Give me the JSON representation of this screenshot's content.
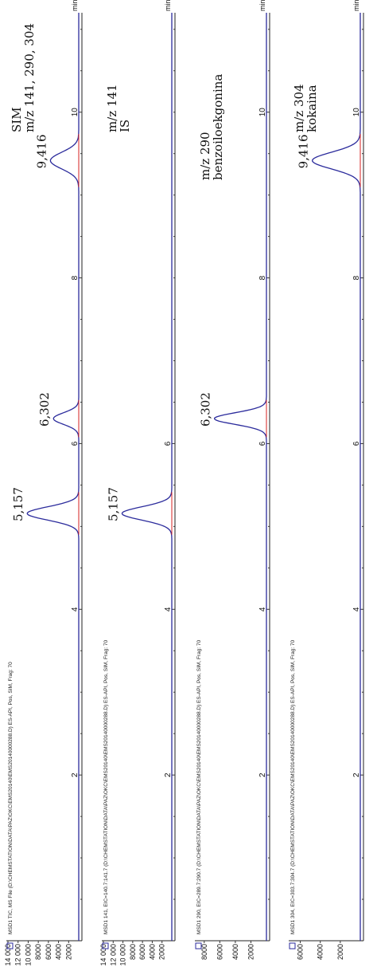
{
  "chart_data": [
    {
      "type": "line",
      "header": "MSD1 TIC, MS File (D:\\CHEMSTATION\\DATA\\PAZ\\OKC\\EMS20140\\EMS20140000288.D)   ES-API, Pos, SIM, Frag: 70",
      "annotation_lines": [
        "SIM",
        "m/z 141, 290, 304"
      ],
      "x_unit": "min",
      "xlim": [
        0,
        11.2
      ],
      "x_ticks": [
        2,
        4,
        6,
        8,
        10
      ],
      "ylim": [
        0,
        14000
      ],
      "y_ticks": [
        2000,
        4000,
        6000,
        8000,
        10000,
        12000,
        14000
      ],
      "y_tick_labels": [
        "2000",
        "4000",
        "6000",
        "8000",
        "10 000",
        "12 000",
        "14 000"
      ],
      "peaks": [
        {
          "rt": 5.157,
          "label": "5,157",
          "height": 10200,
          "sigma": 0.08
        },
        {
          "rt": 6.302,
          "label": "6,302",
          "height": 5000,
          "sigma": 0.07
        },
        {
          "rt": 9.416,
          "label": "9,416",
          "height": 5600,
          "sigma": 0.1
        }
      ]
    },
    {
      "type": "line",
      "header": "MSD1 141, EIC=140.7:141.7 (D:\\CHEMSTATION\\DATA\\PAZ\\OKC\\EMS20140\\EMS20140000288.D)   ES-API, Pos, SIM, Frag: 70",
      "annotation_lines": [
        "m/z 141",
        "IS"
      ],
      "x_unit": "",
      "xlim": [
        0,
        11.2
      ],
      "x_ticks": [
        2,
        4,
        6
      ],
      "ylim": [
        0,
        14000
      ],
      "y_ticks": [
        2000,
        4000,
        6000,
        8000,
        10000,
        12000,
        14000
      ],
      "y_tick_labels": [
        "2000",
        "4000",
        "6000",
        "8000",
        "10 000",
        "12 000",
        "14 000"
      ],
      "peaks": [
        {
          "rt": 5.157,
          "label": "5,157",
          "height": 10200,
          "sigma": 0.08
        }
      ]
    },
    {
      "type": "line",
      "header": "MSD1 290, EIC=289.7:290.7 (D:\\CHEMSTATION\\DATA\\PAZ\\OKC\\EMS20140\\EMS20140000288.D)   ES-API, Pos, SIM, Frag: 70",
      "annotation_lines": [
        "m/z 290",
        "benzoiloekgonina"
      ],
      "x_unit": "",
      "xlim": [
        0,
        11.2
      ],
      "x_ticks": [
        2,
        4,
        6,
        8,
        10
      ],
      "ylim": [
        0,
        9000
      ],
      "y_ticks": [
        2000,
        4000,
        6000,
        8000
      ],
      "y_tick_labels": [
        "2000",
        "4000",
        "6000",
        "8000"
      ],
      "peaks": [
        {
          "rt": 6.302,
          "label": "6,302",
          "height": 6700,
          "sigma": 0.07
        }
      ]
    },
    {
      "type": "line",
      "header": "MSD1 304, EIC=303.7:304.7 (D:\\CHEMSTATION\\DATA\\PAZ\\OKC\\EMS20140\\EMS20140000288.D)   ES-API, Pos, SIM, Frag: 70",
      "annotation_lines": [
        "m/z 304",
        "kokaina"
      ],
      "x_unit": "",
      "xlim": [
        0,
        11.2
      ],
      "x_ticks": [
        2,
        4,
        6,
        8,
        10
      ],
      "ylim": [
        0,
        7000
      ],
      "y_ticks": [
        2000,
        4000,
        6000
      ],
      "y_tick_labels": [
        "2000",
        "4000",
        "6000"
      ],
      "peaks": [
        {
          "rt": 9.416,
          "label": "9,416",
          "height": 4800,
          "sigma": 0.1
        }
      ]
    }
  ],
  "min_label": "min"
}
